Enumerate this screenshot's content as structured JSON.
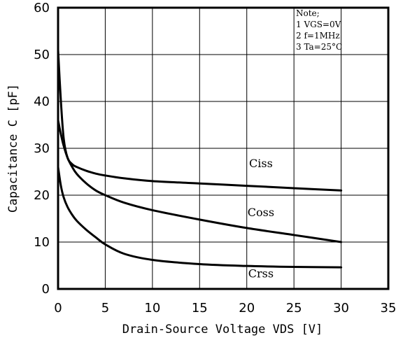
{
  "chart_data": {
    "type": "line",
    "xlabel": "Drain-Source Voltage VDS [V]",
    "ylabel": "Capacitance  C [pF]",
    "xlim": [
      0,
      35
    ],
    "ylim": [
      0,
      60
    ],
    "xticks": [
      "0",
      "5",
      "10",
      "15",
      "20",
      "25",
      "30",
      "35"
    ],
    "yticks": [
      "0",
      "10",
      "20",
      "30",
      "40",
      "50",
      "60"
    ],
    "grid": true,
    "note": {
      "title": "Note;",
      "lines": [
        "1  VGS=0V",
        "2  f=1MHz",
        "3  Ta=25°C"
      ]
    },
    "series": [
      {
        "name": "Ciss",
        "label_at": [
          21.5,
          26
        ],
        "x": [
          0,
          0.3,
          0.6,
          1,
          1.5,
          2,
          3,
          4,
          5,
          7,
          10,
          15,
          20,
          25,
          30
        ],
        "y": [
          51,
          40,
          32,
          28,
          26.6,
          26,
          25.2,
          24.6,
          24.2,
          23.6,
          23,
          22.5,
          22,
          21.5,
          21
        ]
      },
      {
        "name": "Coss",
        "label_at": [
          21.5,
          15.5
        ],
        "x": [
          0,
          0.3,
          0.6,
          1,
          1.5,
          2,
          3,
          4,
          5,
          7,
          10,
          15,
          20,
          25,
          30
        ],
        "y": [
          36,
          33,
          30.5,
          28,
          26,
          24.5,
          22.5,
          21,
          20,
          18.4,
          16.8,
          14.8,
          13,
          11.5,
          10
        ]
      },
      {
        "name": "Crss",
        "label_at": [
          21.5,
          2.5
        ],
        "x": [
          0,
          0.3,
          0.6,
          1,
          1.5,
          2,
          3,
          4,
          5,
          7,
          10,
          15,
          20,
          25,
          30
        ],
        "y": [
          26,
          22,
          19.5,
          17.5,
          15.8,
          14.5,
          12.6,
          11,
          9.5,
          7.5,
          6.2,
          5.3,
          4.9,
          4.7,
          4.6
        ]
      }
    ]
  }
}
